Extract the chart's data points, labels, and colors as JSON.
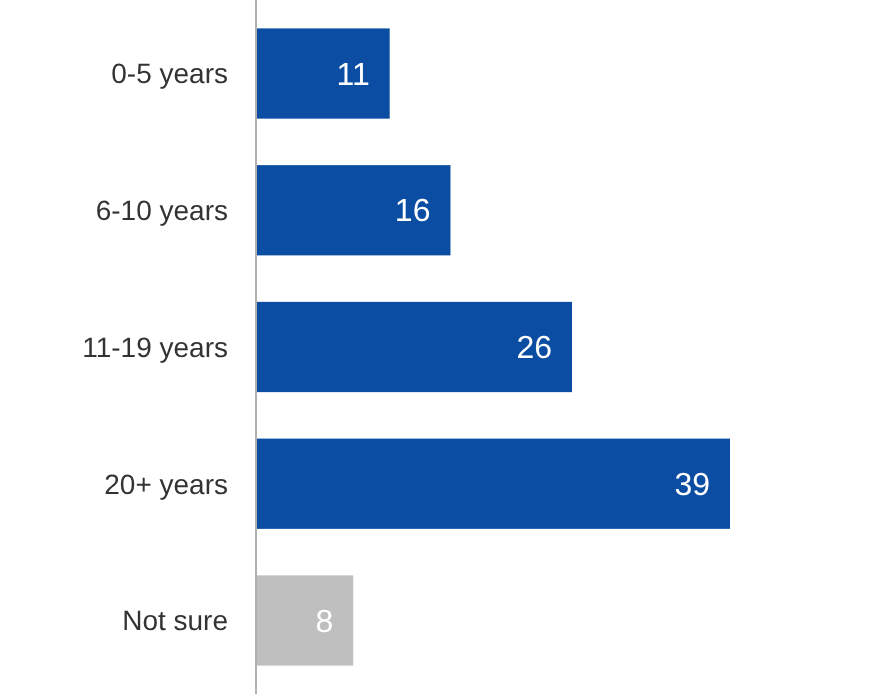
{
  "chart_data": {
    "type": "bar",
    "orientation": "horizontal",
    "categories": [
      "0-5 years",
      "6-10 years",
      "11-19 years",
      "20+ years",
      "Not sure"
    ],
    "values": [
      11,
      16,
      26,
      39,
      8
    ],
    "colors": [
      "#0a4da2",
      "#0a4da2",
      "#0a4da2",
      "#0a4da2",
      "#bfbfbf"
    ],
    "xlim": [
      0,
      39
    ],
    "data_labels": true
  }
}
